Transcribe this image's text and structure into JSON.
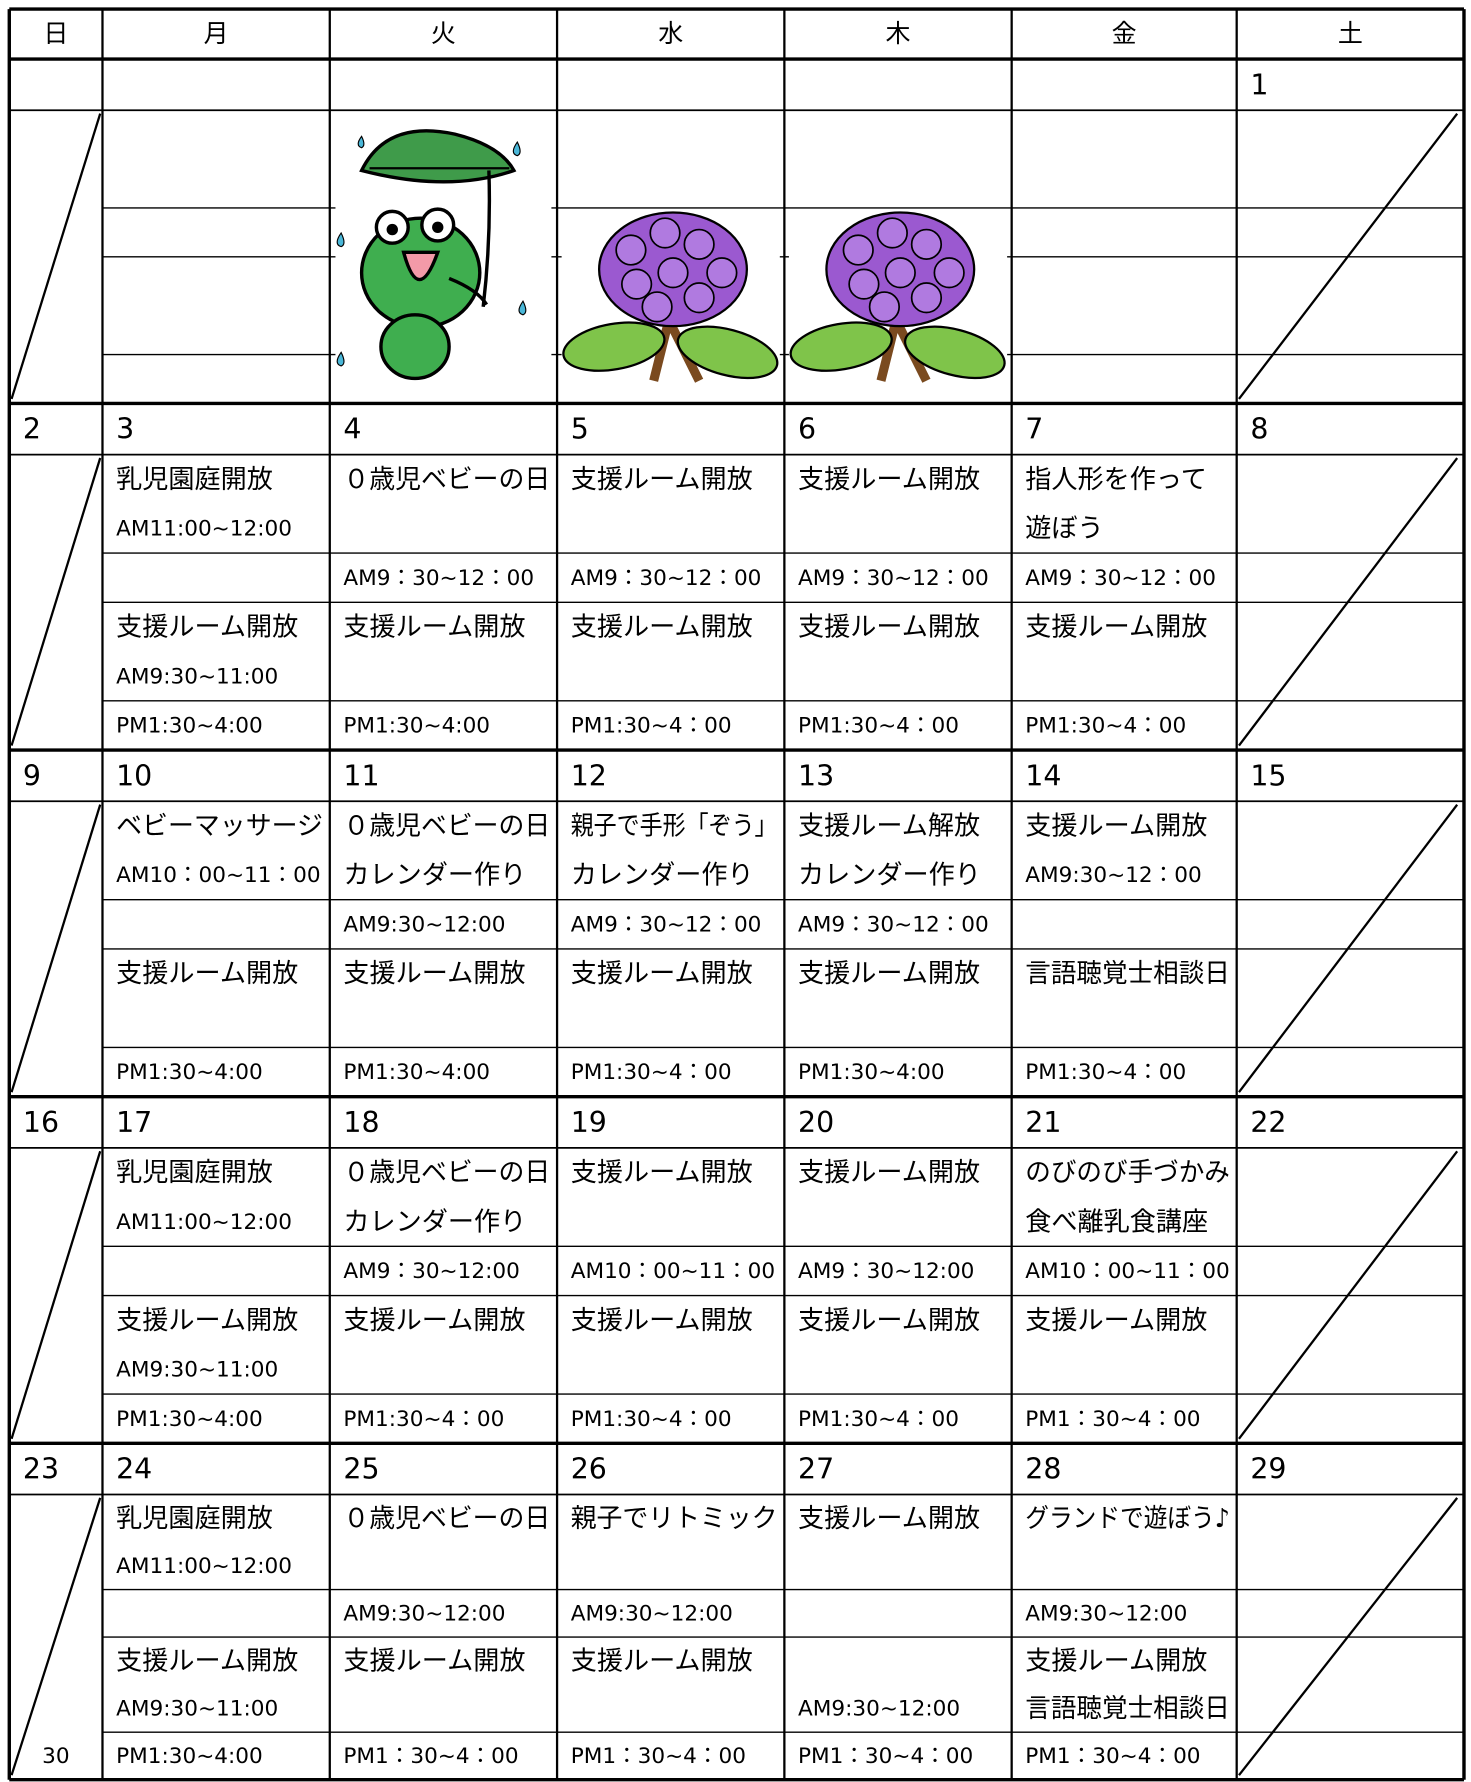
{
  "headers": [
    "日",
    "月",
    "火",
    "水",
    "木",
    "金",
    "土"
  ],
  "weeks": [
    {
      "days": [
        {
          "date": null
        },
        {
          "date": null
        },
        {
          "date": null
        },
        {
          "date": null
        },
        {
          "date": null
        },
        {
          "date": null
        },
        {
          "date": 1
        }
      ]
    },
    {
      "days": [
        {
          "date": 2
        },
        {
          "date": 3,
          "lines": [
            "乳児園庭開放",
            "AM11:00~12:00",
            null,
            "支援ルーム開放",
            "AM9:30~11:00",
            "PM1:30~4:00"
          ]
        },
        {
          "date": 4,
          "lines": [
            "０歳児ベビーの日",
            null,
            "AM9：30~12：00",
            "支援ルーム開放",
            null,
            "PM1:30~4:00"
          ]
        },
        {
          "date": 5,
          "lines": [
            "支援ルーム開放",
            null,
            "AM9：30~12：00",
            "支援ルーム開放",
            null,
            "PM1:30~4：00"
          ]
        },
        {
          "date": 6,
          "lines": [
            "支援ルーム開放",
            null,
            "AM9：30~12：00",
            "支援ルーム開放",
            null,
            "PM1:30~4：00"
          ]
        },
        {
          "date": 7,
          "lines": [
            "指人形を作って",
            "遊ぼう",
            "AM9：30~12：00",
            "支援ルーム開放",
            null,
            "PM1:30~4：00"
          ]
        },
        {
          "date": 8
        }
      ]
    },
    {
      "days": [
        {
          "date": 9
        },
        {
          "date": 10,
          "lines": [
            "ベビーマッサージ",
            "AM10：00~11：00",
            null,
            "支援ルーム開放",
            null,
            "PM1:30~4:00"
          ]
        },
        {
          "date": 11,
          "lines": [
            "０歳児ベビーの日",
            "カレンダー作り",
            "AM9:30~12:00",
            "支援ルーム開放",
            null,
            "PM1:30~4:00"
          ]
        },
        {
          "date": 12,
          "lines": [
            "親子で手形「ぞう」",
            "カレンダー作り",
            "AM9：30~12：00",
            "支援ルーム開放",
            null,
            "PM1:30~4：00"
          ]
        },
        {
          "date": 13,
          "lines": [
            "支援ルーム解放",
            "カレンダー作り",
            "AM9：30~12：00",
            "支援ルーム開放",
            null,
            "PM1:30~4:00"
          ]
        },
        {
          "date": 14,
          "lines": [
            "支援ルーム開放",
            "AM9:30~12：00",
            null,
            "言語聴覚士相談日",
            null,
            "PM1:30~4：00"
          ]
        },
        {
          "date": 15
        }
      ]
    },
    {
      "days": [
        {
          "date": 16
        },
        {
          "date": 17,
          "lines": [
            "乳児園庭開放",
            "AM11:00~12:00",
            null,
            "支援ルーム開放",
            "AM9:30~11:00",
            "PM1:30~4:00"
          ]
        },
        {
          "date": 18,
          "lines": [
            "０歳児ベビーの日",
            "カレンダー作り",
            "AM9：30~12:00",
            "支援ルーム開放",
            null,
            "PM1:30~4：00"
          ]
        },
        {
          "date": 19,
          "lines": [
            "支援ルーム開放",
            null,
            "AM10：00~11：00",
            "支援ルーム開放",
            null,
            "PM1:30~4：00"
          ]
        },
        {
          "date": 20,
          "lines": [
            "支援ルーム開放",
            null,
            "AM9：30~12:00",
            "支援ルーム開放",
            null,
            "PM1:30~4：00"
          ]
        },
        {
          "date": 21,
          "lines": [
            "のびのび手づかみ",
            "食べ離乳食講座",
            "AM10：00~11：00",
            "支援ルーム開放",
            null,
            "PM1：30~4：00"
          ]
        },
        {
          "date": 22
        }
      ]
    },
    {
      "days": [
        {
          "date": 23,
          "lines": [
            null,
            null,
            null,
            null,
            null,
            "30"
          ]
        },
        {
          "date": 24,
          "lines": [
            "乳児園庭開放",
            "AM11:00~12:00",
            null,
            "支援ルーム開放",
            "AM9:30~11:00",
            "PM1:30~4:00"
          ]
        },
        {
          "date": 25,
          "lines": [
            "０歳児ベビーの日",
            null,
            "AM9:30~12:00",
            "支援ルーム開放",
            null,
            "PM1：30~4：00"
          ]
        },
        {
          "date": 26,
          "lines": [
            "親子でリトミック",
            null,
            "AM9:30~12:00",
            "支援ルーム開放",
            null,
            "PM1：30~4：00"
          ]
        },
        {
          "date": 27,
          "lines": [
            "支援ルーム開放",
            null,
            null,
            null,
            "AM9:30~12:00",
            "PM1：30~4：00"
          ]
        },
        {
          "date": 28,
          "lines": [
            "グランドで遊ぼう♪",
            null,
            "AM9:30~12:00",
            "支援ルーム開放",
            "言語聴覚士相談日",
            "PM1：30~4：00"
          ]
        },
        {
          "date": 29
        }
      ]
    }
  ]
}
